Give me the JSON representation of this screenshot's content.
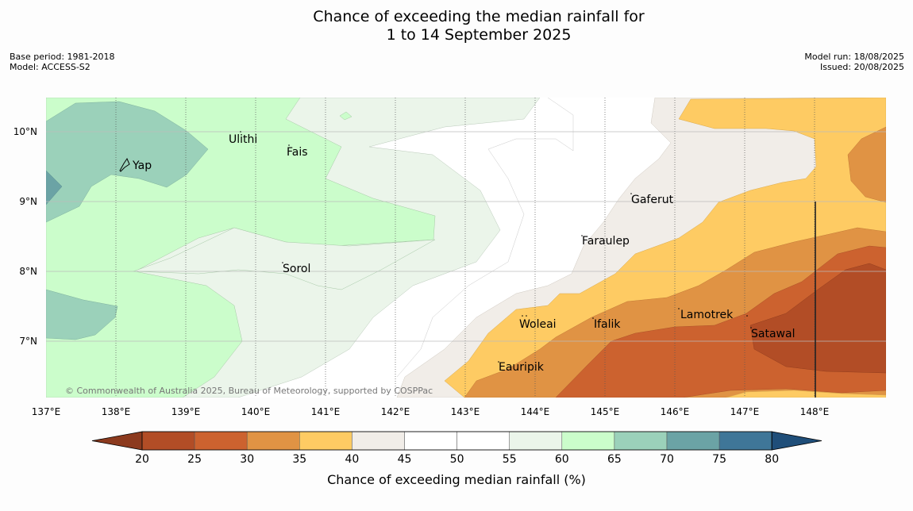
{
  "title": {
    "line1": "Chance of exceeding the median rainfall for",
    "line2": "1 to 14 September 2025"
  },
  "meta": {
    "base_period": "Base period: 1981-2018",
    "model": "Model: ACCESS-S2",
    "model_run": "Model run: 18/08/2025",
    "issued": "Issued: 20/08/2025"
  },
  "map": {
    "lon_labels": [
      "137°E",
      "138°E",
      "139°E",
      "140°E",
      "141°E",
      "142°E",
      "143°E",
      "144°E",
      "145°E",
      "146°E",
      "147°E",
      "148°E"
    ],
    "lat_labels": [
      "10°N",
      "9°N",
      "8°N",
      "7°N"
    ],
    "places": [
      "Ulithi",
      "Fais",
      "Yap",
      "Gaferut",
      "Faraulep",
      "Sorol",
      "Lamotrek",
      "Woleai",
      "Ifalik",
      "Satawal",
      "Eauripik"
    ],
    "copyright": "© Commonwealth of Australia 2025, Bureau of Meteorology, supported by COSPPac"
  },
  "colorbar": {
    "ticks": [
      "20",
      "25",
      "30",
      "35",
      "40",
      "45",
      "50",
      "55",
      "60",
      "65",
      "70",
      "75",
      "80"
    ],
    "colors": [
      "#b24d26",
      "#cc622f",
      "#e09344",
      "#fecb63",
      "#f1ede8",
      "#ffffff",
      "#ffffff",
      "#ebf5ea",
      "#cbfdcb",
      "#9bd1ba",
      "#6ba3a5",
      "#3f7698"
    ],
    "under_color": "#8c3a1e",
    "over_color": "#1f4e79",
    "label": "Chance of exceeding median rainfall (%)"
  }
}
